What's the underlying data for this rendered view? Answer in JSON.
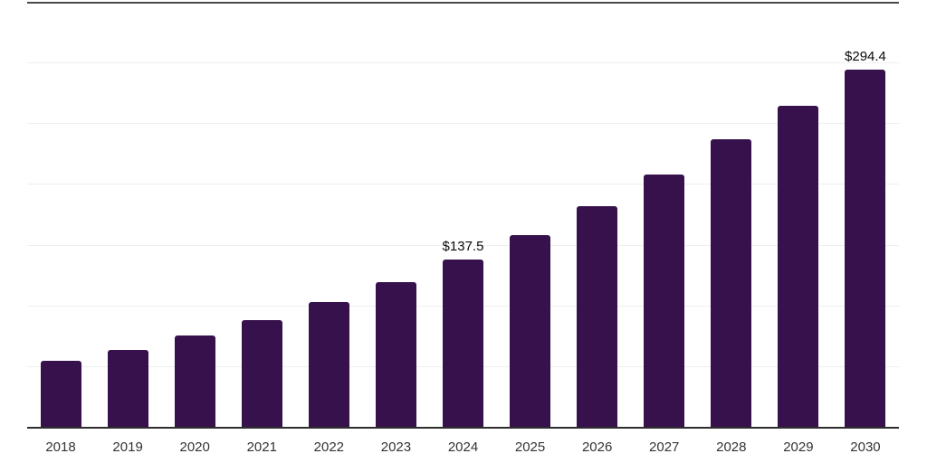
{
  "chart": {
    "background_color": "#ffffff",
    "bar_color": "#36114b",
    "gridline_color": "#efefef",
    "top_border_color": "#4a4a4a",
    "axis_color": "#2e2e2e",
    "data_label_color": "#0a0a0a",
    "tick_label_color": "#333333"
  },
  "chart_data": {
    "type": "bar",
    "title": "",
    "xlabel": "",
    "ylabel": "",
    "legend": "none",
    "grid": "horizontal",
    "ylim": [
      0,
      350
    ],
    "gridline_step": 50,
    "categories": [
      "2018",
      "2019",
      "2020",
      "2021",
      "2022",
      "2023",
      "2024",
      "2025",
      "2026",
      "2027",
      "2028",
      "2029",
      "2030"
    ],
    "values": [
      54.3,
      63.0,
      75.0,
      88.0,
      103.0,
      119.0,
      137.5,
      158.0,
      181.5,
      208.0,
      236.5,
      264.5,
      294.4
    ],
    "data_labels": [
      {
        "category": "2024",
        "text": "$137.5"
      },
      {
        "category": "2030",
        "text": "$294.4"
      }
    ]
  }
}
